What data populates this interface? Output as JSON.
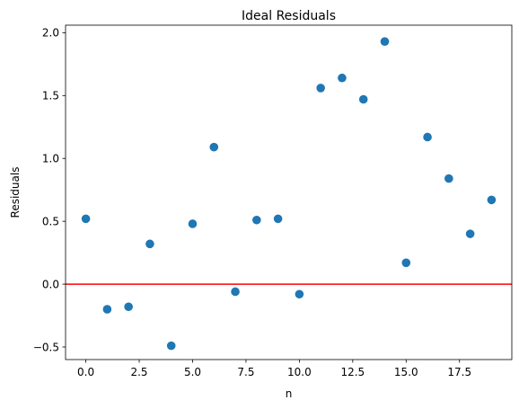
{
  "chart_data": {
    "type": "scatter",
    "title": "Ideal Residuals",
    "xlabel": "n",
    "ylabel": "Residuals",
    "xlim": [
      -0.95,
      19.95
    ],
    "ylim": [
      -0.6,
      2.06
    ],
    "xticks": [
      0,
      2.5,
      5,
      7.5,
      10,
      12.5,
      15,
      17.5
    ],
    "xtick_labels": [
      "0.0",
      "2.5",
      "5.0",
      "7.5",
      "10.0",
      "12.5",
      "15.0",
      "17.5"
    ],
    "yticks": [
      -0.5,
      0,
      0.5,
      1,
      1.5,
      2
    ],
    "ytick_labels": [
      "−0.5",
      "0.0",
      "0.5",
      "1.0",
      "1.5",
      "2.0"
    ],
    "grid": false,
    "point_color": "#1f77b4",
    "reference_line": {
      "y": 0,
      "color": "#ff0000"
    },
    "series": [
      {
        "x": [
          0,
          1,
          2,
          3,
          4,
          5,
          6,
          7,
          8,
          9,
          10,
          11,
          12,
          13,
          14,
          15,
          16,
          17,
          18,
          19
        ],
        "y": [
          0.52,
          -0.2,
          -0.18,
          0.32,
          -0.49,
          0.48,
          1.09,
          -0.06,
          0.51,
          0.52,
          -0.08,
          1.56,
          1.64,
          1.47,
          1.93,
          0.17,
          1.17,
          0.84,
          0.4,
          0.67
        ]
      }
    ]
  }
}
